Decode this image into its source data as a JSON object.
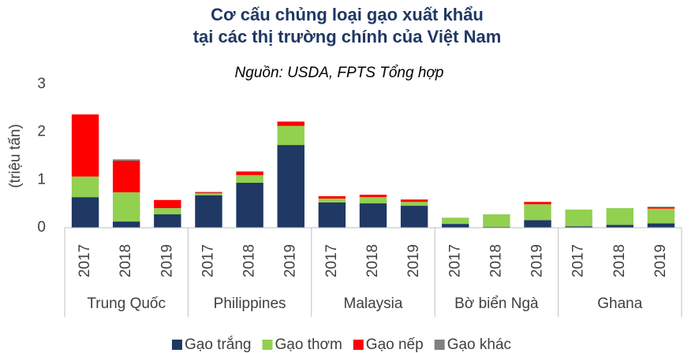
{
  "chart_data": {
    "type": "stacked_bar",
    "title": [
      "Cơ cấu chủng loại gạo xuất khẩu",
      "tại các thị trường chính của Việt Nam"
    ],
    "subtitle": "Nguồn: USDA, FPTS Tổng hợp",
    "ylabel": "(triệu tấn)",
    "categories": [
      "2017",
      "2018",
      "2019",
      "2017",
      "2018",
      "2019",
      "2017",
      "2018",
      "2019",
      "2017",
      "2018",
      "2019",
      "2017",
      "2018",
      "2019"
    ],
    "groups": [
      "Trung Quốc",
      "Philippines",
      "Malaysia",
      "Bờ biển Ngà",
      "Ghana"
    ],
    "series": [
      {
        "name": "Gạo trắng",
        "color": "#1f3864",
        "values": [
          0.64,
          0.13,
          0.28,
          0.68,
          0.94,
          1.73,
          0.53,
          0.51,
          0.46,
          0.08,
          0.02,
          0.16,
          0.03,
          0.06,
          0.09
        ]
      },
      {
        "name": "Gạo thơm",
        "color": "#92d050",
        "values": [
          0.43,
          0.61,
          0.13,
          0.04,
          0.16,
          0.4,
          0.08,
          0.13,
          0.08,
          0.13,
          0.26,
          0.33,
          0.35,
          0.35,
          0.31
        ]
      },
      {
        "name": "Gạo nếp",
        "color": "#ff0000",
        "values": [
          1.3,
          0.66,
          0.17,
          0.02,
          0.07,
          0.09,
          0.05,
          0.05,
          0.05,
          0,
          0,
          0.05,
          0,
          0,
          0.03
        ]
      },
      {
        "name": "Gạo khác",
        "color": "#808080",
        "values": [
          0,
          0.03,
          0,
          0.01,
          0.01,
          0,
          0,
          0,
          0,
          0,
          0,
          0,
          0,
          0,
          0.01
        ]
      }
    ],
    "ylim": [
      0,
      3
    ],
    "yticks": [
      0,
      1,
      2,
      3
    ],
    "grid": false,
    "legend": "bottom"
  }
}
